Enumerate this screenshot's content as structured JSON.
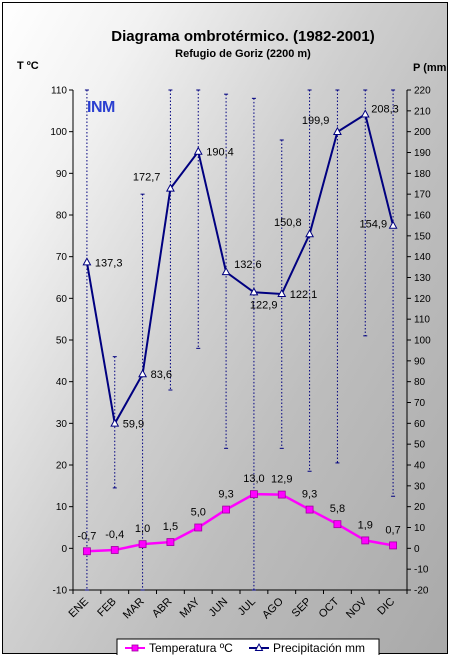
{
  "chart_data": {
    "type": "line",
    "title": "Diagrama ombrotérmico. (1982-2001)",
    "subtitle": "Refugio de Goriz (2200 m)",
    "logo_text": "INM",
    "categories": [
      "ENE",
      "FEB",
      "MAR",
      "ABR",
      "MAY",
      "JUN",
      "JUL",
      "AGO",
      "SEP",
      "OCT",
      "NOV",
      "DIC"
    ],
    "left_axis": {
      "label": "T ºC",
      "min": -10,
      "max": 110,
      "step": 10
    },
    "right_axis": {
      "label": "P (mm",
      "min": -20,
      "max": 220,
      "step": 10
    },
    "grid": false,
    "legend_position": "bottom",
    "series": [
      {
        "name": "Temperatura ºC",
        "axis": "left",
        "color": "#ff00ff",
        "values": [
          -0.7,
          -0.4,
          1.0,
          1.5,
          5.0,
          9.3,
          13.0,
          12.9,
          9.3,
          5.8,
          1.9,
          0.7
        ],
        "labels": [
          "-0,7",
          "-0,4",
          "1,0",
          "1,5",
          "5,0",
          "9,3",
          "13,0",
          "12,9",
          "9,3",
          "5,8",
          "1,9",
          "0,7"
        ]
      },
      {
        "name": "Precipitación mm",
        "axis": "right",
        "color": "#000080",
        "values": [
          137.3,
          59.9,
          83.6,
          172.7,
          190.4,
          132.6,
          122.9,
          122.1,
          150.8,
          199.9,
          208.3,
          154.9
        ],
        "labels": [
          "137,3",
          "59,9",
          "83,6",
          "172,7",
          "190,4",
          "132,6",
          "122,9",
          "122,1",
          "150,8",
          "199,9",
          "208,3",
          "154,9"
        ],
        "range_high": [
          220,
          92,
          170,
          220,
          220,
          218,
          216,
          196,
          220,
          220,
          220,
          220
        ],
        "range_low": [
          -20,
          29,
          -20,
          76,
          96,
          48,
          -20,
          48,
          37,
          41,
          102,
          25
        ]
      }
    ]
  }
}
